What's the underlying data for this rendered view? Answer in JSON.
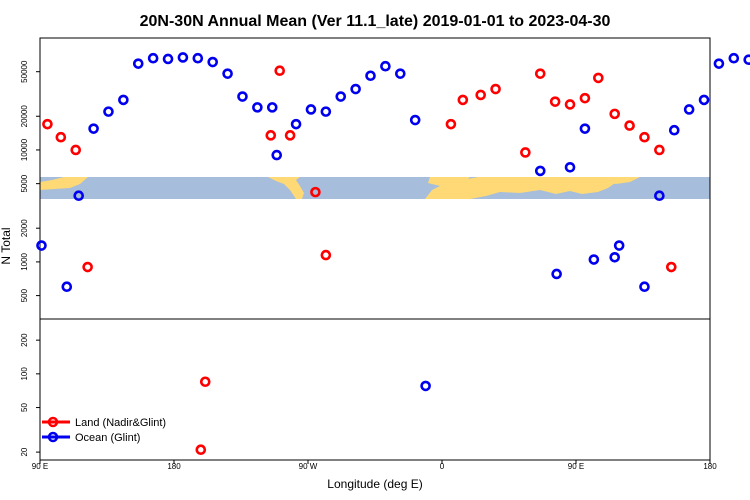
{
  "chart_data": {
    "type": "scatter",
    "title": "20N-30N Annual Mean (Ver 11.1_late)   2019-01-01 to 2023-04-30",
    "xlabel": "Longitude (deg E)",
    "ylabel": "N Total",
    "x_tick_labels": [
      "90 E",
      "180",
      "90 W",
      "0",
      "90 E",
      "180"
    ],
    "x_tick_values": [
      90,
      180,
      270,
      360,
      450,
      540
    ],
    "xlim": [
      90,
      540
    ],
    "y_scale": "log",
    "ylim": [
      17,
      100000
    ],
    "y_tick_labels": [
      "20",
      "50",
      "100",
      "200",
      "500",
      "1000",
      "2000",
      "5000",
      "10000",
      "20000",
      "50000"
    ],
    "y_tick_values": [
      20,
      50,
      100,
      200,
      500,
      1000,
      2000,
      5000,
      10000,
      20000,
      50000
    ],
    "colors": {
      "land": "#ff0000",
      "ocean": "#0000ee",
      "map_ocean": "#a6bddb",
      "map_land": "#fed976"
    },
    "legend": [
      {
        "name": "Land (Nadir&Glint)",
        "color": "#ff0000"
      },
      {
        "name": "Ocean (Glint)",
        "color": "#0000ee"
      }
    ],
    "series": [
      {
        "name": "Land (Nadir&Glint)",
        "points": [
          [
            95,
            17000
          ],
          [
            104,
            13000
          ],
          [
            114,
            10000
          ],
          [
            122,
            900
          ],
          [
            198,
            21
          ],
          [
            201,
            85
          ],
          [
            245,
            13500
          ],
          [
            251,
            51000
          ],
          [
            258,
            13500
          ],
          [
            275,
            4200
          ],
          [
            282,
            1150
          ],
          [
            366,
            17000
          ],
          [
            374,
            28000
          ],
          [
            386,
            31000
          ],
          [
            396,
            35000
          ],
          [
            416,
            9500
          ],
          [
            426,
            48000
          ],
          [
            436,
            27000
          ],
          [
            446,
            25500
          ],
          [
            456,
            29000
          ],
          [
            465,
            44000
          ],
          [
            476,
            21000
          ],
          [
            486,
            16500
          ],
          [
            496,
            13000
          ],
          [
            506,
            10000
          ],
          [
            514,
            900
          ]
        ]
      },
      {
        "name": "Ocean (Glint)",
        "points": [
          [
            91,
            1400
          ],
          [
            108,
            600
          ],
          [
            116,
            3900
          ],
          [
            126,
            15500
          ],
          [
            136,
            22000
          ],
          [
            146,
            28000
          ],
          [
            156,
            59000
          ],
          [
            166,
            66000
          ],
          [
            176,
            65000
          ],
          [
            186,
            67000
          ],
          [
            196,
            66000
          ],
          [
            206,
            61000
          ],
          [
            216,
            48000
          ],
          [
            226,
            30000
          ],
          [
            236,
            24000
          ],
          [
            246,
            24000
          ],
          [
            249,
            9000
          ],
          [
            262,
            17000
          ],
          [
            272,
            23000
          ],
          [
            282,
            22000
          ],
          [
            292,
            30000
          ],
          [
            302,
            35000
          ],
          [
            312,
            46000
          ],
          [
            322,
            56000
          ],
          [
            332,
            48000
          ],
          [
            342,
            18500
          ],
          [
            349,
            78
          ],
          [
            426,
            6500
          ],
          [
            437,
            780
          ],
          [
            446,
            7000
          ],
          [
            456,
            15500
          ],
          [
            462,
            1050
          ],
          [
            476,
            1100
          ],
          [
            479,
            1400
          ],
          [
            496,
            600
          ],
          [
            506,
            3900
          ],
          [
            516,
            15000
          ],
          [
            526,
            23000
          ],
          [
            536,
            28000
          ],
          [
            546,
            59000
          ],
          [
            556,
            66000
          ],
          [
            566,
            64000
          ]
        ]
      }
    ]
  }
}
